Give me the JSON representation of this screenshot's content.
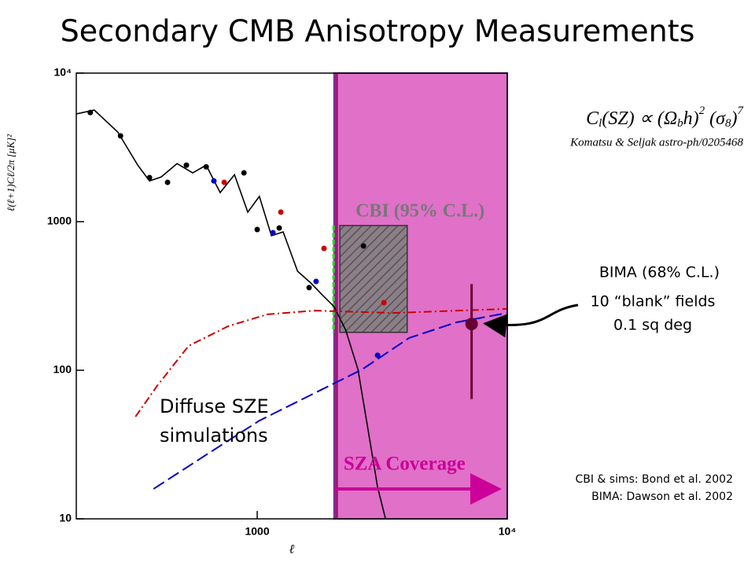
{
  "chart_data": {
    "type": "line",
    "title": "Secondary CMB Anisotropy Measurements",
    "x_label": "ℓ",
    "y_label": "ℓ(ℓ+1)Cℓ/2π  [μK]²",
    "log_x": true,
    "log_y": true,
    "xlim": [
      189,
      10000
    ],
    "ylim": [
      10,
      10000
    ],
    "xticks": [
      1000,
      {
        "value": 10000,
        "label": "10⁴"
      }
    ],
    "yticks": [
      10,
      100,
      1000,
      {
        "value": 10000,
        "label": "10⁴"
      }
    ],
    "series": [
      {
        "style": "solid",
        "color": "#000000",
        "x": [
          189,
          223,
          277,
          333,
          371,
          413,
          478,
          552,
          625,
          711,
          811,
          917,
          1020,
          1140,
          1270,
          1450,
          1640,
          1820,
          2030,
          2260,
          2530,
          2820,
          3030,
          3260
        ],
        "values": [
          5310,
          5640,
          4010,
          2400,
          1880,
          2000,
          2460,
          2130,
          2400,
          1570,
          2070,
          1160,
          1480,
          804,
          854,
          464,
          386,
          322,
          268,
          186,
          101,
          33.8,
          16.3,
          10
        ]
      },
      {
        "style": "dashdot",
        "color": "#cc0000",
        "x": [
          326,
          399,
          532,
          766,
          1100,
          1700,
          3500,
          10000
        ],
        "values": [
          48.7,
          79,
          146,
          198,
          238,
          252,
          243,
          259
        ]
      },
      {
        "style": "dashed",
        "color": "#0000cc",
        "x": [
          385,
          615,
          1020,
          1700,
          2620,
          4050,
          6250,
          10000
        ],
        "values": [
          15.9,
          26.5,
          45.8,
          70.3,
          101,
          165,
          210,
          243
        ]
      },
      {
        "style": "points",
        "color": "#000000",
        "x": [
          215,
          284,
          371,
          438,
          521,
          625,
          885,
          1000,
          1225,
          1613,
          2660
        ],
        "values": [
          5430,
          3780,
          1980,
          1840,
          2400,
          2340,
          2130,
          885,
          907,
          360,
          686
        ]
      },
      {
        "style": "points",
        "color": "#0000cc",
        "x": [
          671,
          1156,
          1720,
          3030
        ],
        "values": [
          1880,
          843,
          396,
          126
        ]
      },
      {
        "style": "points",
        "color": "#cc0000",
        "x": [
          738,
          1243,
          1850,
          3210
        ],
        "values": [
          1840,
          1160,
          661,
          285
        ]
      }
    ],
    "cbi_box": {
      "label": "CBI (95% C.L.)",
      "x": [
        2140,
        3980
      ],
      "y": [
        180,
        942
      ]
    },
    "sza": {
      "label": "SZA Coverage",
      "x_start": 2030
    },
    "bima": {
      "label": "BIMA (68% C.L.)",
      "x": 7200,
      "y": 205,
      "y_low": 64,
      "y_high": 380,
      "color": "#660033"
    },
    "formula": [
      "C",
      "l",
      "(SZ) ∝ (Ω",
      "b",
      "h)",
      "2",
      " (σ",
      "8",
      ")",
      "7"
    ],
    "formula_ref": "Komatsu & Seljak astro-ph/0205468",
    "bima_note": [
      "10 “blank” fields",
      "0.1 sq deg"
    ],
    "sim_note": [
      "Diffuse SZE",
      "simulations"
    ],
    "refs": [
      "CBI & sims: Bond et al. 2002",
      "BIMA: Dawson et al. 2002"
    ]
  }
}
